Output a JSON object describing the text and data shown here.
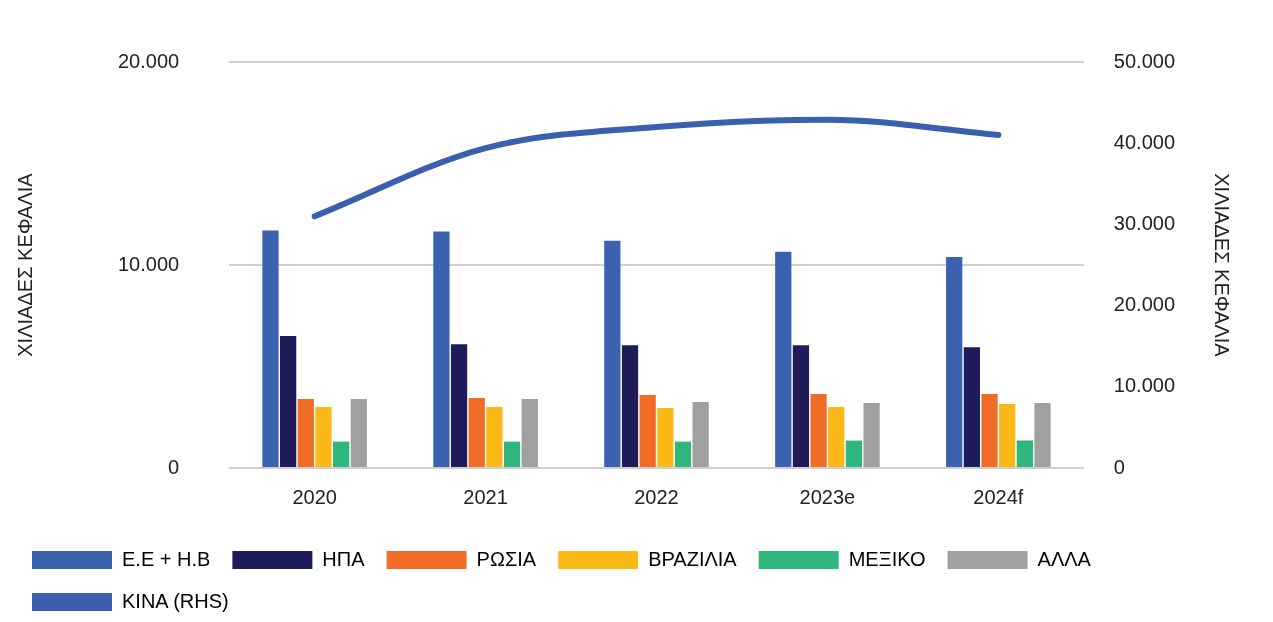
{
  "chart_data": {
    "type": "bar",
    "categories": [
      "2020",
      "2021",
      "2022",
      "2023e",
      "2024f"
    ],
    "ylabel": "ΧΙΛΙΑΔΕΣ ΚΕΦΑΛΙΑ",
    "y2label": "ΧΙΛΙΑΔΕΣ ΚΕΦΑΛΙΑ",
    "ylim": [
      0,
      20000
    ],
    "yticks": [
      {
        "value": 0,
        "label": "0"
      },
      {
        "value": 10000,
        "label": "10.000"
      },
      {
        "value": 20000,
        "label": "20.000"
      }
    ],
    "y2lim": [
      0,
      50000
    ],
    "y2ticks": [
      {
        "value": 0,
        "label": "0"
      },
      {
        "value": 10000,
        "label": "10.000"
      },
      {
        "value": 20000,
        "label": "20.000"
      },
      {
        "value": 30000,
        "label": "30.000"
      },
      {
        "value": 40000,
        "label": "40.000"
      },
      {
        "value": 50000,
        "label": "50.000"
      }
    ],
    "grid": "y",
    "legend": "bottom",
    "marker": "none",
    "series": [
      {
        "name": "Ε.Ε + Η.Β",
        "color": "#3a62ae",
        "values": [
          11700,
          11650,
          11200,
          10650,
          10400
        ]
      },
      {
        "name": "ΗΠΑ",
        "color": "#1f1c5a",
        "values": [
          6500,
          6100,
          6050,
          6050,
          5950
        ]
      },
      {
        "name": "ΡΩΣΙΑ",
        "color": "#f06c27",
        "values": [
          3400,
          3450,
          3600,
          3650,
          3650
        ]
      },
      {
        "name": "ΒΡΑΖΙΛΙΑ",
        "color": "#fbb918",
        "values": [
          3000,
          3000,
          2950,
          3000,
          3150
        ]
      },
      {
        "name": "ΜΕΞΙΚΟ",
        "color": "#2fb67c",
        "values": [
          1300,
          1300,
          1300,
          1350,
          1350
        ]
      },
      {
        "name": "ΑΛΛΑ",
        "color": "#a0a0a0",
        "values": [
          3400,
          3400,
          3250,
          3200,
          3200
        ]
      },
      {
        "name": "ΚΙΝΑ (RHS)",
        "color": "#3a5fae",
        "type": "line",
        "axis": "y2",
        "values": [
          31000,
          39400,
          42000,
          42900,
          41000
        ]
      }
    ]
  }
}
